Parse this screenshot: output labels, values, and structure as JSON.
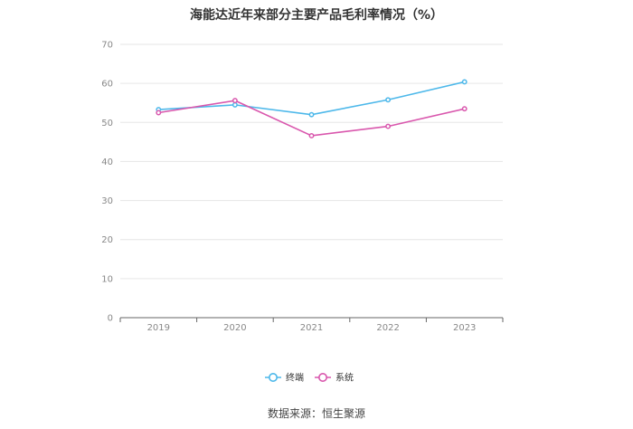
{
  "chart_data": {
    "type": "line",
    "title": "海能达近年来部分主要产品毛利率情况（%）",
    "categories": [
      "2019",
      "2020",
      "2021",
      "2022",
      "2023"
    ],
    "ylim": [
      0,
      70
    ],
    "yticks": [
      0,
      10,
      20,
      30,
      40,
      50,
      60,
      70
    ],
    "grid": true,
    "legend_position": "bottom",
    "series": [
      {
        "name": "终端",
        "color": "#4db8ea",
        "values": [
          53.3,
          54.5,
          52.0,
          55.8,
          60.4
        ]
      },
      {
        "name": "系统",
        "color": "#d957ad",
        "values": [
          52.5,
          55.6,
          46.6,
          49.0,
          53.5
        ]
      }
    ]
  },
  "footer": {
    "source": "数据来源：恒生聚源"
  }
}
